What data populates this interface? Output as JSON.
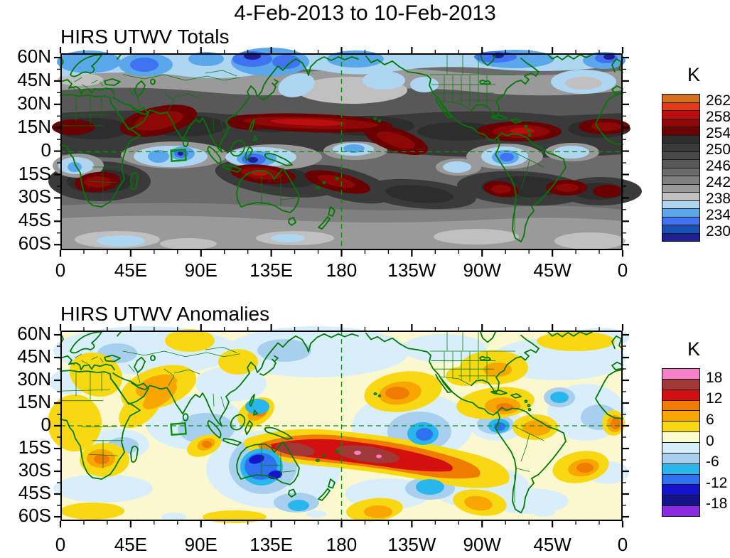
{
  "title": "4-Feb-2013 to 10-Feb-2013",
  "panels": [
    {
      "id": "totals",
      "title": "HIRS UTWV Totals",
      "colorbar": {
        "unit": "K",
        "labels": [
          "262",
          "258",
          "254",
          "250",
          "246",
          "242",
          "238",
          "234",
          "230"
        ],
        "colors_top_to_bottom": [
          "#d2711f",
          "#e63917",
          "#bb0f0f",
          "#8f0808",
          "#6b0000",
          "#2d2d2d",
          "#3a3a3a",
          "#484848",
          "#585858",
          "#6b6b6b",
          "#808080",
          "#9a9a9a",
          "#c0c0c0",
          "#aed6f1",
          "#5aa7ec",
          "#3f73f2",
          "#1a4fb4",
          "#1f1f94"
        ]
      },
      "x_axis": {
        "labels": [
          "0",
          "45E",
          "90E",
          "135E",
          "180",
          "135W",
          "90W",
          "45W",
          "0"
        ]
      },
      "y_axis": {
        "labels": [
          "60N",
          "45N",
          "30N",
          "15N",
          "0",
          "15S",
          "30S",
          "45S",
          "60S"
        ]
      }
    },
    {
      "id": "anomalies",
      "title": "HIRS UTWV Anomalies",
      "colorbar": {
        "unit": "K",
        "labels": [
          "18",
          "12",
          "6",
          "0",
          "-6",
          "-12",
          "-18"
        ],
        "colors_top_to_bottom": [
          "#f580c8",
          "#a03838",
          "#d40f0f",
          "#f07d02",
          "#f9a602",
          "#f8d813",
          "#fbfbd0",
          "#d6eefa",
          "#a8cfee",
          "#28b6ec",
          "#2e72f0",
          "#1414cc",
          "#13138c",
          "#8b2be0"
        ]
      },
      "x_axis": {
        "labels": [
          "0",
          "45E",
          "90E",
          "135E",
          "180",
          "135W",
          "90W",
          "45W",
          "0"
        ]
      },
      "y_axis": {
        "labels": [
          "60N",
          "45N",
          "30N",
          "15N",
          "0",
          "15S",
          "30S",
          "45S",
          "60S"
        ]
      }
    }
  ],
  "map_overlay": {
    "coastline_color": "#007a00",
    "grid_lines": "dashed green line on the equator (0) and on the date line (180)",
    "region_marker": "small green box on the equator near 75E in both maps"
  },
  "chart_data": [
    {
      "type": "heatmap",
      "subtype": "filled-contour-world-map",
      "title": "HIRS UTWV Totals",
      "units": "K",
      "x_ticks": [
        "0",
        "45E",
        "90E",
        "135E",
        "180",
        "135W",
        "90W",
        "45W",
        "0"
      ],
      "y_ticks": [
        "60N",
        "45N",
        "30N",
        "15N",
        "0",
        "15S",
        "30S",
        "45S",
        "60S"
      ],
      "value_range": [
        228,
        264
      ],
      "contour_interval": 2,
      "legend_values": [
        262,
        258,
        254,
        250,
        246,
        242,
        238,
        234,
        230
      ],
      "palette_top_to_bottom": [
        "#d2711f",
        "#e63917",
        "#bb0f0f",
        "#8f0808",
        "#6b0000",
        "#2d2d2d",
        "#3a3a3a",
        "#484848",
        "#585858",
        "#6b6b6b",
        "#808080",
        "#9a9a9a",
        "#c0c0c0",
        "#aed6f1",
        "#5aa7ec",
        "#3f73f2",
        "#1a4fb4",
        "#1f1f94"
      ],
      "notable_features": [
        "Cold blue band (230-238 K) along 50-62N across Eurasia, the N Pacific, Canada and the N Atlantic",
        "Very warm band (>254 K, dark red) near 10-20N over Arabia/NW India, the S China Sea, the central Pacific ITCZ, the Caribbean and the tropical Atlantic",
        "Equatorial light-blue minima (232-238 K) over the Indian Ocean, Maritime Continent, west-central Pacific and NW South America",
        "Warm blobs (>254 K) near 15-30S over southern Africa, N Australia / Coral Sea / SPCZ, and S America / S Atlantic",
        "Light gray (238-242 K) over the N Pacific near 35-45N and along 50-60S"
      ],
      "annotations": [
        "dashed green equator and 180 date line",
        "small green region box near 75E on the equator"
      ]
    },
    {
      "type": "heatmap",
      "subtype": "filled-contour-world-map",
      "title": "HIRS UTWV Anomalies",
      "units": "K",
      "x_ticks": [
        "0",
        "45E",
        "90E",
        "135E",
        "180",
        "135W",
        "90W",
        "45W",
        "0"
      ],
      "y_ticks": [
        "60N",
        "45N",
        "30N",
        "15N",
        "0",
        "15S",
        "30S",
        "45S",
        "60S"
      ],
      "value_range": [
        -21,
        21
      ],
      "contour_interval": 3,
      "legend_values": [
        18,
        12,
        6,
        0,
        -6,
        -12,
        -18
      ],
      "palette_top_to_bottom": [
        "#f580c8",
        "#a03838",
        "#d40f0f",
        "#f07d02",
        "#f9a602",
        "#f8d813",
        "#fbfbd0",
        "#d6eefa",
        "#a8cfee",
        "#28b6ec",
        "#2e72f0",
        "#1414cc",
        "#13138c",
        "#8b2be0"
      ],
      "notable_features": [
        "Strong positive anomaly (+12 to +18 K, red/brick) from N Australia across the SW Pacific near 10-20S",
        "Strong negative anomaly (-9 to -15 K, blue) in the SE Indian Ocean west of Australia",
        "Moderate positive anomalies (+6 to +12 K) over the central N Pacific, SW US/Mexico, Caribbean-Atlantic, NE Brazil, S Atlantic, Angola coast and SE of New Zealand",
        "Moderate negative anomalies (-3 to -9 K) over the Bay of Bengal, equatorial central Pacific, Colombia/Caribbean coast and the mid-latitude S Pacific",
        "Weak anomalies (within +/-3 K, pale yellow / pale blue) over most remaining areas"
      ],
      "annotations": [
        "dashed green equator and 180 date line",
        "small green region box near 75E on the equator"
      ]
    }
  ]
}
